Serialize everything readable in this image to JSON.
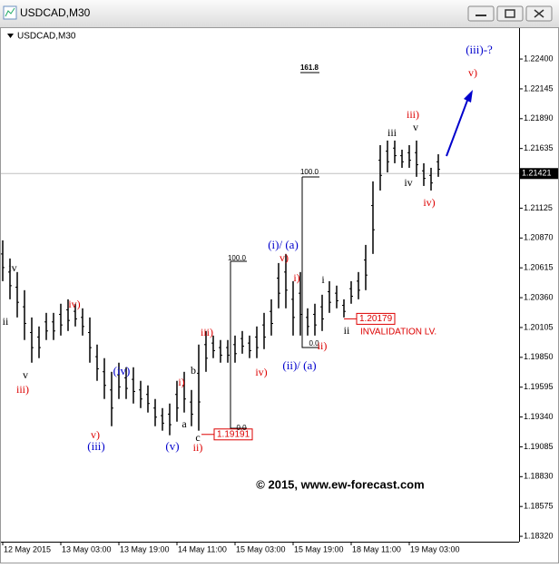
{
  "chart_data": {
    "type": "hilo",
    "window_title": "USDCAD,M30",
    "title": "USDCAD,M30",
    "watermark": "© 2015, www.ew-forecast.com",
    "color": "#000000",
    "highs": [
      1.2085,
      1.20695,
      1.20579,
      1.20424,
      1.20191,
      1.20114,
      1.2023,
      1.2023,
      1.20308,
      1.20346,
      1.20308,
      1.20269,
      1.20191,
      1.19959,
      1.19843,
      1.19726,
      1.19804,
      1.19765,
      1.19765,
      1.19649,
      1.1961,
      1.19494,
      1.19416,
      1.19455,
      1.19649,
      1.19726,
      1.19571,
      1.19959,
      1.20075,
      1.20036,
      1.19998,
      1.19998,
      1.20036,
      1.20075,
      1.20036,
      1.20114,
      1.2023,
      1.20346,
      1.20656,
      1.20734,
      1.20501,
      1.20579,
      1.20269,
      1.20308,
      1.20385,
      1.20501,
      1.20463,
      1.20346,
      1.20501,
      1.20579,
      1.20811,
      1.21354,
      1.21664,
      1.21703,
      1.21703,
      1.21625,
      1.21664,
      1.21703,
      1.21509,
      1.2147,
      1.21586
    ],
    "lows": [
      1.20501,
      1.20346,
      1.20191,
      1.19998,
      1.19804,
      1.19843,
      1.19998,
      1.19998,
      1.20036,
      1.20075,
      1.20114,
      1.20036,
      1.19804,
      1.19649,
      1.19494,
      1.19261,
      1.19494,
      1.19494,
      1.19455,
      1.19416,
      1.19378,
      1.19261,
      1.19223,
      1.19184,
      1.193,
      1.19378,
      1.19261,
      1.19223,
      1.19726,
      1.19843,
      1.19804,
      1.19804,
      1.19804,
      1.19881,
      1.19843,
      1.19843,
      1.1992,
      1.20036,
      1.20269,
      1.20269,
      1.20036,
      1.20036,
      1.20036,
      1.20036,
      1.20075,
      1.2023,
      1.20269,
      1.20191,
      1.20308,
      1.20346,
      1.20424,
      1.20734,
      1.21276,
      1.21431,
      1.21509,
      1.2147,
      1.2147,
      1.21393,
      1.21315,
      1.21276,
      1.21393
    ],
    "ylim": [
      1.18212,
      1.2254
    ],
    "yticks": [
      {
        "value": 1.224,
        "label": "1.22400"
      },
      {
        "value": 1.22145,
        "label": "1.22145"
      },
      {
        "value": 1.2189,
        "label": "1.21890"
      },
      {
        "value": 1.21635,
        "label": "1.21635"
      },
      1.21125,
      {
        "value": 1.2087,
        "label": "1.20870"
      },
      1.20615,
      {
        "value": 1.2036,
        "label": "1.20360"
      },
      {
        "value": 1.20105,
        "label": "1.20105"
      },
      {
        "value": 1.1985,
        "label": "1.19850"
      },
      1.19595,
      {
        "value": 1.1934,
        "label": "1.19340"
      },
      1.19085,
      {
        "value": 1.1883,
        "label": "1.18830"
      },
      1.18575,
      {
        "value": 1.1832,
        "label": "1.18320"
      }
    ],
    "xticks": [
      {
        "value": 0,
        "label": "12 May 2015"
      },
      {
        "value": 8,
        "label": "13 May 03:00"
      },
      {
        "value": 16,
        "label": "13 May 19:00"
      },
      {
        "value": 24,
        "label": "14 May 11:00"
      },
      {
        "value": 32,
        "label": "15 May 03:00"
      },
      {
        "value": 40,
        "label": "15 May 19:00"
      },
      {
        "value": 48,
        "label": "18 May 11:00"
      },
      {
        "value": 56,
        "label": "19 May 03:00"
      }
    ],
    "current_price": 1.21421,
    "price_boxes": [
      1.20179,
      1.19191
    ],
    "invalidation_label": "INVALIDATION LV.",
    "annotations": [
      {
        "text": "iv",
        "color": "#000000"
      },
      {
        "text": "ii",
        "color": "#000000"
      },
      {
        "text": "v",
        "color": "#000000"
      },
      {
        "text": "iii)",
        "color": "#dd0000"
      },
      {
        "text": "iv)",
        "color": "#dd0000"
      },
      {
        "text": "v)",
        "color": "#dd0000"
      },
      {
        "text": "(iii)",
        "color": "#0000cc"
      },
      {
        "text": "(iv)",
        "color": "#0000cc"
      },
      {
        "text": "(v)",
        "color": "#0000cc"
      },
      {
        "text": "a",
        "color": "#000000"
      },
      {
        "text": "b",
        "color": "#000000"
      },
      {
        "text": "c",
        "color": "#000000"
      },
      {
        "text": "ii)",
        "color": "#dd0000"
      },
      {
        "text": "i)",
        "color": "#dd0000"
      },
      {
        "text": "iii)",
        "color": "#dd0000"
      },
      {
        "text": "iv)",
        "color": "#dd0000"
      },
      {
        "text": "v)",
        "color": "#dd0000"
      },
      {
        "text": "(i)/ (a)",
        "color": "#0000cc"
      },
      {
        "text": "i)",
        "color": "#dd0000"
      },
      {
        "text": "(ii)/ (a)",
        "color": "#0000cc"
      },
      {
        "text": "ii)",
        "color": "#dd0000"
      },
      {
        "text": "i",
        "color": "#000000"
      },
      {
        "text": "ii",
        "color": "#000000"
      },
      {
        "text": "iii",
        "color": "#000000"
      },
      {
        "text": "iii)",
        "color": "#dd0000"
      },
      {
        "text": "v",
        "color": "#000000"
      },
      {
        "text": "iv",
        "color": "#000000"
      },
      {
        "text": "iv)",
        "color": "#dd0000"
      },
      {
        "text": "(iii)-?",
        "color": "#0000cc"
      },
      {
        "text": "v)",
        "color": "#dd0000"
      }
    ],
    "fib_labels": [
      "161.8",
      "100.0",
      "0.0",
      "100.0",
      "0.0"
    ]
  }
}
